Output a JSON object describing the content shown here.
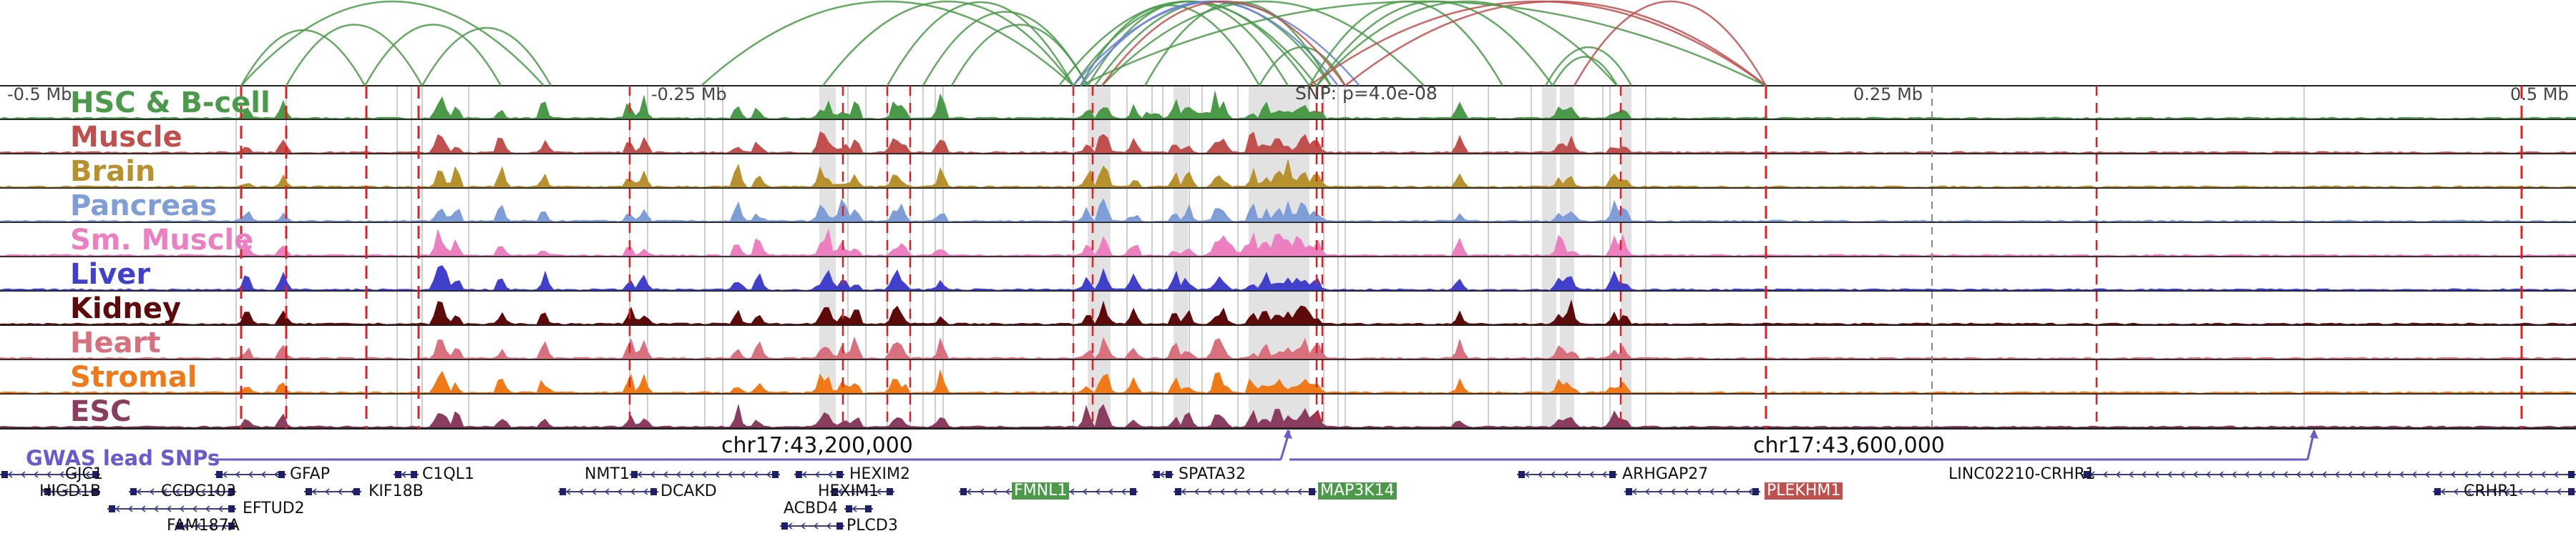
{
  "scale": {
    "left": "-0.5 Mb",
    "left_mid": "-0.25 Mb",
    "right_mid": "0.25 Mb",
    "right": "0.5 Mb"
  },
  "lead_snp": {
    "label": "SNP: p=4.0e-08"
  },
  "tracks": [
    {
      "label": "HSC & B-cell",
      "color": "#4a9a4a"
    },
    {
      "label": "Muscle",
      "color": "#c0504d"
    },
    {
      "label": "Brain",
      "color": "#b8912f"
    },
    {
      "label": "Pancreas",
      "color": "#7f9ed8"
    },
    {
      "label": "Sm. Muscle",
      "color": "#ec7fbf"
    },
    {
      "label": "Liver",
      "color": "#4040cc"
    },
    {
      "label": "Kidney",
      "color": "#5c0a0a"
    },
    {
      "label": "Heart",
      "color": "#d8707e"
    },
    {
      "label": "Stromal",
      "color": "#f07a18"
    },
    {
      "label": "ESC",
      "color": "#8a3d5e"
    }
  ],
  "gwas": {
    "title": "GWAS lead SNPs",
    "color": "#6a5acd"
  },
  "coordinates": {
    "left": "chr17:43,200,000",
    "right": "chr17:43,600,000"
  },
  "genes": [
    {
      "name": "GJC1",
      "highlight": false
    },
    {
      "name": "HIGD1B",
      "highlight": false
    },
    {
      "name": "GFAP",
      "highlight": false
    },
    {
      "name": "CCDC103",
      "highlight": false
    },
    {
      "name": "EFTUD2",
      "highlight": false
    },
    {
      "name": "FAM187A",
      "highlight": false
    },
    {
      "name": "C1QL1",
      "highlight": false
    },
    {
      "name": "KIF18B",
      "highlight": false
    },
    {
      "name": "NMT1",
      "highlight": false
    },
    {
      "name": "DCAKD",
      "highlight": false
    },
    {
      "name": "HEXIM2",
      "highlight": false
    },
    {
      "name": "HEXIM1",
      "highlight": false
    },
    {
      "name": "ACBD4",
      "highlight": false
    },
    {
      "name": "PLCD3",
      "highlight": false
    },
    {
      "name": "FMNL1",
      "highlight": true,
      "color": "#4a9a4a"
    },
    {
      "name": "SPATA32",
      "highlight": false
    },
    {
      "name": "MAP3K14",
      "highlight": true,
      "color": "#4a9a4a"
    },
    {
      "name": "ARHGAP27",
      "highlight": false
    },
    {
      "name": "PLEKHM1",
      "highlight": true,
      "color": "#c0504d"
    },
    {
      "name": "LINC02210-CRHR1",
      "highlight": false
    },
    {
      "name": "CRHR1",
      "highlight": false
    }
  ]
}
